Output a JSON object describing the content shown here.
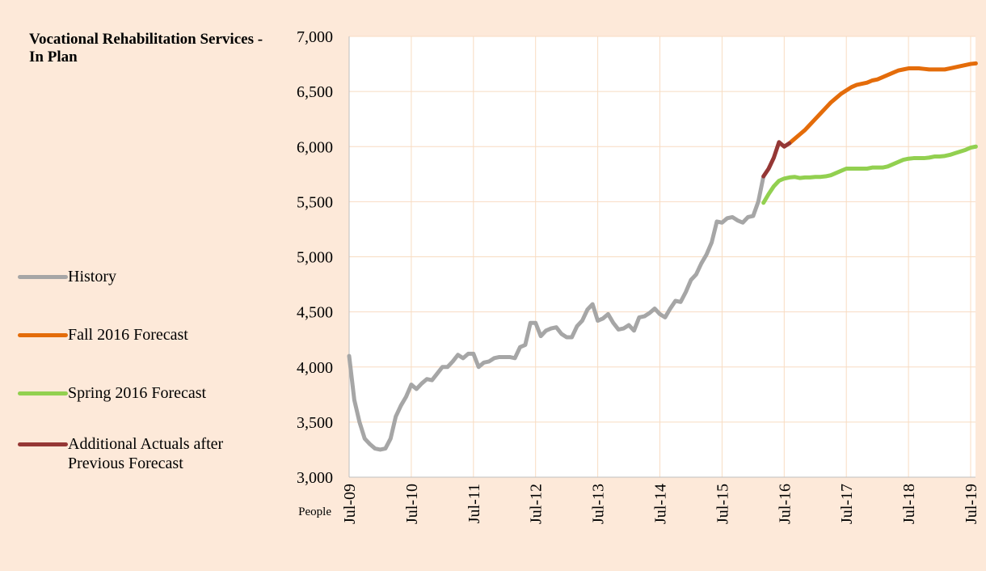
{
  "chart_data": {
    "type": "line",
    "title": "Vocational Rehabilitation Services - In Plan",
    "ylabel": "People",
    "categories": [
      "Jul-09",
      null,
      null,
      null,
      null,
      null,
      null,
      null,
      null,
      null,
      null,
      null,
      "Jul-10",
      null,
      null,
      null,
      null,
      null,
      null,
      null,
      null,
      null,
      null,
      null,
      "Jul-11",
      null,
      null,
      null,
      null,
      null,
      null,
      null,
      null,
      null,
      null,
      null,
      "Jul-12",
      null,
      null,
      null,
      null,
      null,
      null,
      null,
      null,
      null,
      null,
      null,
      "Jul-13",
      null,
      null,
      null,
      null,
      null,
      null,
      null,
      null,
      null,
      null,
      null,
      "Jul-14",
      null,
      null,
      null,
      null,
      null,
      null,
      null,
      null,
      null,
      null,
      null,
      "Jul-15",
      null,
      null,
      null,
      null,
      null,
      null,
      null,
      null,
      null,
      null,
      null,
      "Jul-16",
      null,
      null,
      null,
      null,
      null,
      null,
      null,
      null,
      null,
      null,
      null,
      "Jul-17",
      null,
      null,
      null,
      null,
      null,
      null,
      null,
      null,
      null,
      null,
      null,
      "Jul-18",
      null,
      null,
      null,
      null,
      null,
      null,
      null,
      null,
      null,
      null,
      null,
      "Jul-19",
      null
    ],
    "series": [
      {
        "name": "History",
        "color": "#a6a6a6",
        "values": [
          4100,
          3700,
          3500,
          3350,
          3300,
          3260,
          3250,
          3260,
          3350,
          3550,
          3650,
          3730,
          3840,
          3800,
          3850,
          3890,
          3880,
          3940,
          4000,
          4000,
          4050,
          4110,
          4080,
          4120,
          4120,
          4000,
          4040,
          4050,
          4080,
          4090,
          4090,
          4090,
          4080,
          4180,
          4200,
          4400,
          4400,
          4280,
          4330,
          4350,
          4360,
          4300,
          4270,
          4270,
          4370,
          4420,
          4520,
          4570,
          4420,
          4440,
          4480,
          4400,
          4340,
          4350,
          4380,
          4330,
          4450,
          4460,
          4490,
          4530,
          4480,
          4450,
          4530,
          4600,
          4590,
          4680,
          4790,
          4840,
          4940,
          5020,
          5130,
          5320,
          5310,
          5350,
          5360,
          5330,
          5310,
          5360,
          5370,
          5500,
          5730,
          null,
          null,
          null,
          null,
          null,
          null,
          null,
          null,
          null,
          null,
          null,
          null,
          null,
          null,
          null,
          null,
          null,
          null,
          null,
          null,
          null,
          null,
          null,
          null,
          null,
          null,
          null,
          null,
          null,
          null,
          null,
          null,
          null,
          null,
          null,
          null,
          null,
          null,
          null,
          null,
          null
        ]
      },
      {
        "name": "Fall 2016 Forecast",
        "color": "#e46c0a",
        "values": [
          null,
          null,
          null,
          null,
          null,
          null,
          null,
          null,
          null,
          null,
          null,
          null,
          null,
          null,
          null,
          null,
          null,
          null,
          null,
          null,
          null,
          null,
          null,
          null,
          null,
          null,
          null,
          null,
          null,
          null,
          null,
          null,
          null,
          null,
          null,
          null,
          null,
          null,
          null,
          null,
          null,
          null,
          null,
          null,
          null,
          null,
          null,
          null,
          null,
          null,
          null,
          null,
          null,
          null,
          null,
          null,
          null,
          null,
          null,
          null,
          null,
          null,
          null,
          null,
          null,
          null,
          null,
          null,
          null,
          null,
          null,
          null,
          null,
          null,
          null,
          null,
          null,
          null,
          null,
          null,
          null,
          null,
          null,
          null,
          null,
          6030,
          6070,
          6110,
          6150,
          6200,
          6250,
          6300,
          6350,
          6400,
          6440,
          6480,
          6510,
          6540,
          6560,
          6570,
          6580,
          6600,
          6610,
          6630,
          6650,
          6670,
          6690,
          6700,
          6710,
          6710,
          6710,
          6705,
          6700,
          6700,
          6700,
          6700,
          6710,
          6720,
          6730,
          6740,
          6750,
          6755
        ]
      },
      {
        "name": "Spring 2016 Forecast",
        "color": "#92d050",
        "values": [
          null,
          null,
          null,
          null,
          null,
          null,
          null,
          null,
          null,
          null,
          null,
          null,
          null,
          null,
          null,
          null,
          null,
          null,
          null,
          null,
          null,
          null,
          null,
          null,
          null,
          null,
          null,
          null,
          null,
          null,
          null,
          null,
          null,
          null,
          null,
          null,
          null,
          null,
          null,
          null,
          null,
          null,
          null,
          null,
          null,
          null,
          null,
          null,
          null,
          null,
          null,
          null,
          null,
          null,
          null,
          null,
          null,
          null,
          null,
          null,
          null,
          null,
          null,
          null,
          null,
          null,
          null,
          null,
          null,
          null,
          null,
          null,
          null,
          null,
          null,
          null,
          null,
          null,
          null,
          null,
          5490,
          5570,
          5640,
          5690,
          5710,
          5720,
          5725,
          5715,
          5720,
          5720,
          5725,
          5725,
          5730,
          5740,
          5760,
          5780,
          5800,
          5800,
          5800,
          5800,
          5800,
          5810,
          5810,
          5810,
          5820,
          5840,
          5860,
          5880,
          5890,
          5895,
          5895,
          5895,
          5900,
          5910,
          5910,
          5915,
          5925,
          5940,
          5955,
          5970,
          5990,
          6000
        ]
      },
      {
        "name": "Additional Actuals after Previous Forecast",
        "color": "#953735",
        "values": [
          null,
          null,
          null,
          null,
          null,
          null,
          null,
          null,
          null,
          null,
          null,
          null,
          null,
          null,
          null,
          null,
          null,
          null,
          null,
          null,
          null,
          null,
          null,
          null,
          null,
          null,
          null,
          null,
          null,
          null,
          null,
          null,
          null,
          null,
          null,
          null,
          null,
          null,
          null,
          null,
          null,
          null,
          null,
          null,
          null,
          null,
          null,
          null,
          null,
          null,
          null,
          null,
          null,
          null,
          null,
          null,
          null,
          null,
          null,
          null,
          null,
          null,
          null,
          null,
          null,
          null,
          null,
          null,
          null,
          null,
          null,
          null,
          null,
          null,
          null,
          null,
          null,
          null,
          null,
          null,
          5730,
          5800,
          5900,
          6040,
          6000,
          6030,
          null,
          null,
          null,
          null,
          null,
          null,
          null,
          null,
          null,
          null,
          null,
          null,
          null,
          null,
          null,
          null,
          null,
          null,
          null,
          null,
          null,
          null,
          null,
          null,
          null,
          null,
          null,
          null,
          null,
          null,
          null,
          null,
          null,
          null,
          null,
          null
        ]
      }
    ],
    "ylim": [
      3000,
      7000
    ],
    "yticks": [
      {
        "value": 3000,
        "label": "3,000"
      },
      {
        "value": 3500,
        "label": "3,500"
      },
      {
        "value": 4000,
        "label": "4,000"
      },
      {
        "value": 4500,
        "label": "4,500"
      },
      {
        "value": 5000,
        "label": "5,000"
      },
      {
        "value": 5500,
        "label": "5,500"
      },
      {
        "value": 6000,
        "label": "6,000"
      },
      {
        "value": 6500,
        "label": "6,500"
      },
      {
        "value": 7000,
        "label": "7,000"
      }
    ],
    "grid": true,
    "legend": "left"
  }
}
